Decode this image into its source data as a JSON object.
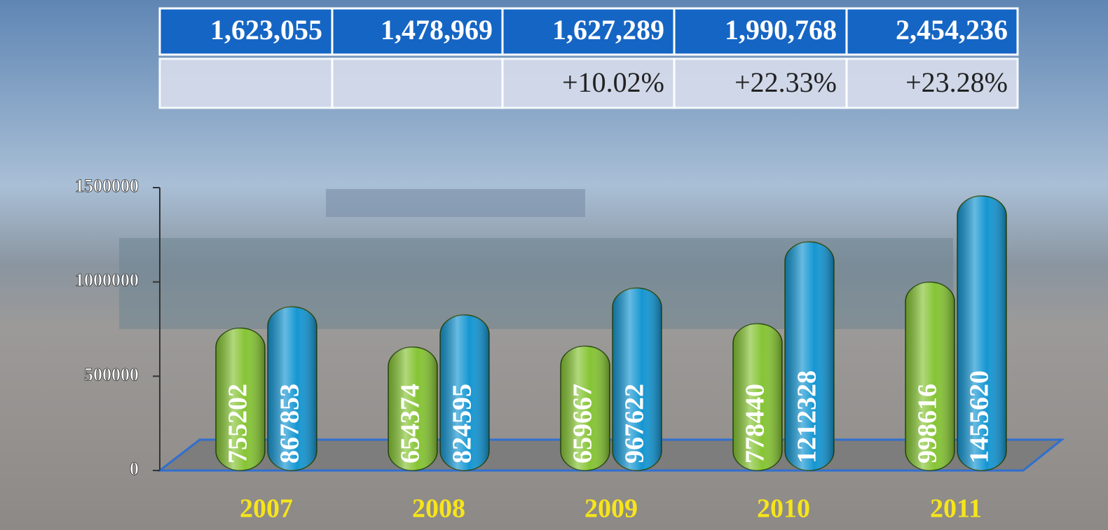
{
  "table": {
    "totals": [
      "1,623,055",
      "1,478,969",
      "1,627,289",
      "1,990,768",
      "2,454,236"
    ],
    "growth": [
      null,
      null,
      "+10.02%",
      "+22.33%",
      "+23.28%"
    ]
  },
  "chart_data": {
    "type": "bar",
    "categories": [
      "2007",
      "2008",
      "2009",
      "2010",
      "2011"
    ],
    "series": [
      {
        "color": "#86c435",
        "values": [
          755202,
          654374,
          659667,
          778440,
          998616
        ]
      },
      {
        "color": "#1596d2",
        "values": [
          867853,
          824595,
          967622,
          1212328,
          1455620
        ]
      }
    ],
    "ylim": [
      0,
      1500000
    ],
    "yticks": [
      0,
      500000,
      1000000,
      1500000
    ]
  }
}
